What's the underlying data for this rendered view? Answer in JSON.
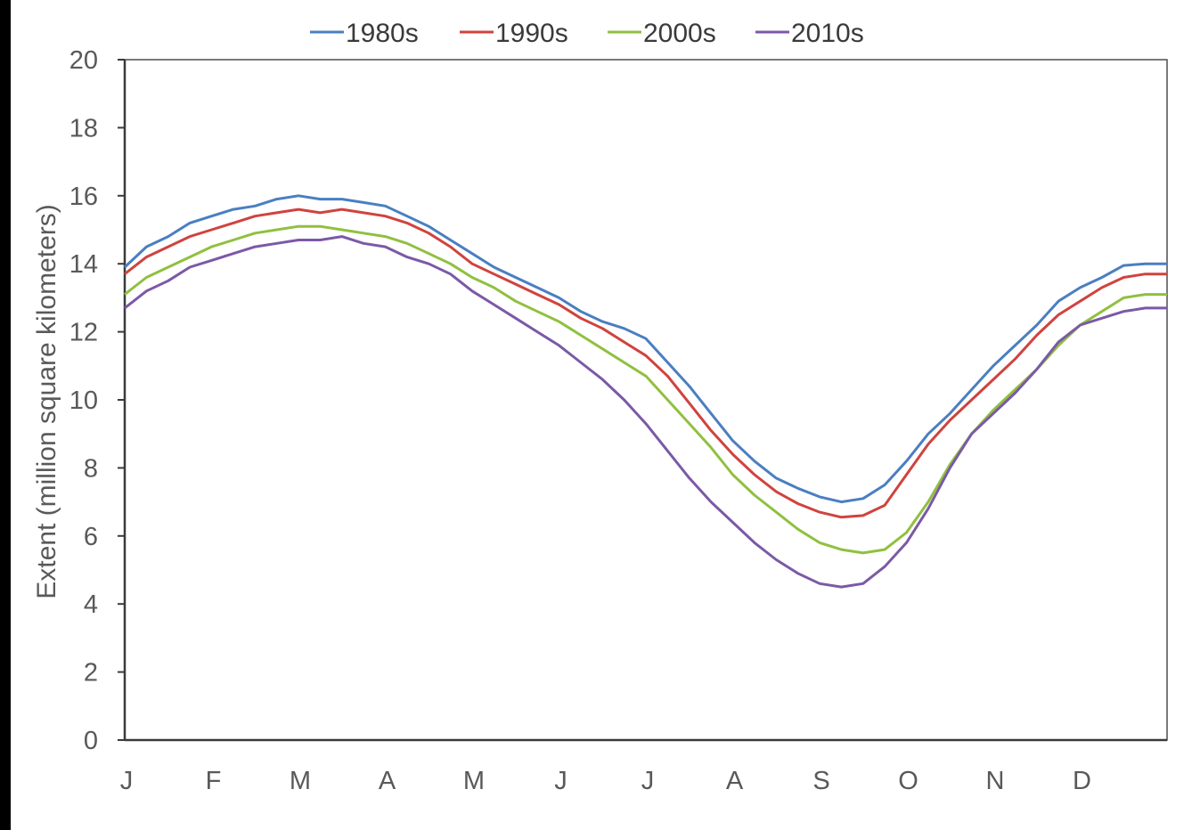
{
  "chart_data": {
    "type": "line",
    "title": "",
    "xlabel": "",
    "ylabel": "Extent (million square kilometers)",
    "ylim": [
      0,
      20
    ],
    "xlim": [
      0,
      12
    ],
    "y_ticks": [
      "0",
      "2",
      "4",
      "6",
      "8",
      "10",
      "12",
      "14",
      "16",
      "18",
      "20"
    ],
    "x_ticks": [
      "J",
      "F",
      "M",
      "A",
      "M",
      "J",
      "J",
      "A",
      "S",
      "O",
      "N",
      "D"
    ],
    "grid": false,
    "legend_position": "top",
    "x": [
      0,
      0.25,
      0.5,
      0.75,
      1.0,
      1.25,
      1.5,
      1.75,
      2.0,
      2.25,
      2.5,
      2.75,
      3.0,
      3.25,
      3.5,
      3.75,
      4.0,
      4.25,
      4.5,
      4.75,
      5.0,
      5.25,
      5.5,
      5.75,
      6.0,
      6.25,
      6.5,
      6.75,
      7.0,
      7.25,
      7.5,
      7.75,
      8.0,
      8.25,
      8.5,
      8.75,
      9.0,
      9.25,
      9.5,
      9.75,
      10.0,
      10.25,
      10.5,
      10.75,
      11.0,
      11.25,
      11.5,
      11.75,
      12.0
    ],
    "series": [
      {
        "name": "1980s",
        "color": "#4a7fc1",
        "values": [
          13.9,
          14.5,
          14.8,
          15.2,
          15.4,
          15.6,
          15.7,
          15.9,
          16.0,
          15.9,
          15.9,
          15.8,
          15.7,
          15.4,
          15.1,
          14.7,
          14.3,
          13.9,
          13.6,
          13.3,
          13.0,
          12.6,
          12.3,
          12.1,
          11.8,
          11.1,
          10.4,
          9.6,
          8.8,
          8.2,
          7.7,
          7.4,
          7.15,
          7.0,
          7.1,
          7.5,
          8.2,
          9.0,
          9.6,
          10.3,
          11.0,
          11.6,
          12.2,
          12.9,
          13.3,
          13.6,
          13.95,
          14.0,
          14.0
        ]
      },
      {
        "name": "1990s",
        "color": "#d0433e",
        "values": [
          13.7,
          14.2,
          14.5,
          14.8,
          15.0,
          15.2,
          15.4,
          15.5,
          15.6,
          15.5,
          15.6,
          15.5,
          15.4,
          15.2,
          14.9,
          14.5,
          14.0,
          13.7,
          13.4,
          13.1,
          12.8,
          12.4,
          12.1,
          11.7,
          11.3,
          10.7,
          9.9,
          9.1,
          8.4,
          7.8,
          7.3,
          6.95,
          6.7,
          6.55,
          6.6,
          6.9,
          7.8,
          8.7,
          9.4,
          10.0,
          10.6,
          11.2,
          11.9,
          12.5,
          12.9,
          13.3,
          13.6,
          13.7,
          13.7
        ]
      },
      {
        "name": "2000s",
        "color": "#90c040",
        "values": [
          13.1,
          13.6,
          13.9,
          14.2,
          14.5,
          14.7,
          14.9,
          15.0,
          15.1,
          15.1,
          15.0,
          14.9,
          14.8,
          14.6,
          14.3,
          14.0,
          13.6,
          13.3,
          12.9,
          12.6,
          12.3,
          11.9,
          11.5,
          11.1,
          10.7,
          10.0,
          9.3,
          8.6,
          7.8,
          7.2,
          6.7,
          6.2,
          5.8,
          5.6,
          5.5,
          5.6,
          6.1,
          7.0,
          8.1,
          9.0,
          9.7,
          10.3,
          10.9,
          11.6,
          12.2,
          12.6,
          13.0,
          13.1,
          13.1
        ]
      },
      {
        "name": "2010s",
        "color": "#7b59a6",
        "values": [
          12.7,
          13.2,
          13.5,
          13.9,
          14.1,
          14.3,
          14.5,
          14.6,
          14.7,
          14.7,
          14.8,
          14.6,
          14.5,
          14.2,
          14.0,
          13.7,
          13.2,
          12.8,
          12.4,
          12.0,
          11.6,
          11.1,
          10.6,
          10.0,
          9.3,
          8.5,
          7.7,
          7.0,
          6.4,
          5.8,
          5.3,
          4.9,
          4.6,
          4.5,
          4.6,
          5.1,
          5.8,
          6.8,
          8.0,
          9.0,
          9.6,
          10.2,
          10.9,
          11.7,
          12.2,
          12.4,
          12.6,
          12.7,
          12.7
        ]
      }
    ]
  }
}
